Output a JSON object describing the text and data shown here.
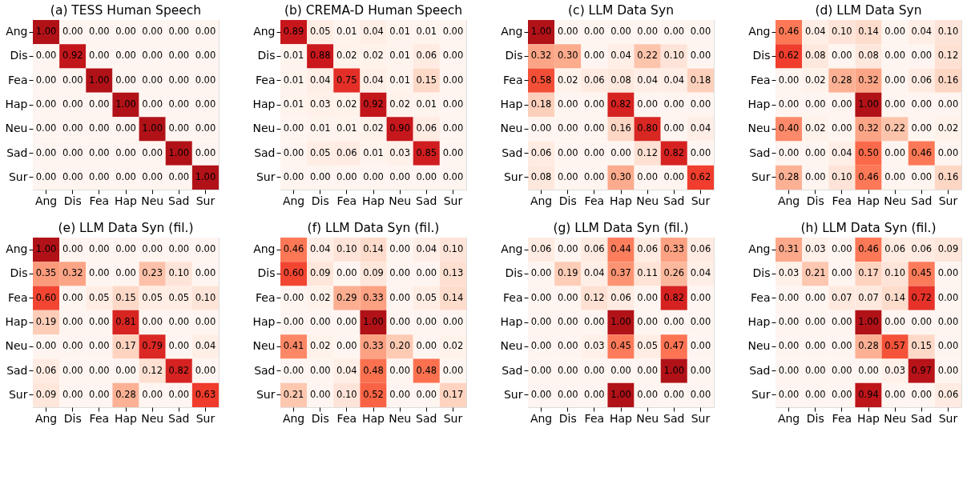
{
  "chart_data": [
    {
      "type": "heatmap",
      "title": "(a) TESS Human Speech",
      "categories": [
        "Ang",
        "Dis",
        "Fea",
        "Hap",
        "Neu",
        "Sad",
        "Sur"
      ],
      "y_categories": [
        "Ang",
        "Dis",
        "Fea",
        "Hap",
        "Neu",
        "Sad",
        "Sur"
      ],
      "cells": [
        [
          1.0,
          0,
          0,
          0,
          0,
          0,
          0
        ],
        [
          0,
          0.92,
          0,
          0,
          0,
          0,
          0
        ],
        [
          0,
          0,
          1.0,
          0,
          0,
          0,
          0
        ],
        [
          0,
          0,
          0,
          1.0,
          0,
          0,
          0
        ],
        [
          0,
          0,
          0,
          0,
          1.0,
          0,
          0
        ],
        [
          0,
          0,
          0,
          0,
          0,
          1.0,
          0
        ],
        [
          0,
          0,
          0,
          0,
          0,
          0,
          1.0
        ]
      ],
      "cell_labels": [
        [
          "1.00",
          "0.00",
          "0.00",
          "0.00",
          "0.00",
          "0.00",
          "0.00"
        ],
        [
          "0.00",
          "0.92",
          "0.00",
          "0.00",
          "0.00",
          "0.00",
          "0.00"
        ],
        [
          "0.00",
          "0.00",
          "1.00",
          "0.00",
          "0.00",
          "0.00",
          "0.00"
        ],
        [
          "0.00",
          "0.00",
          "0.00",
          "1.00",
          "0.00",
          "0.00",
          "0.00"
        ],
        [
          "0.00",
          "0.00",
          "0.00",
          "0.00",
          "1.00",
          "0.00",
          "0.00"
        ],
        [
          "0.00",
          "0.00",
          "0.00",
          "0.00",
          "0.00",
          "1.00",
          "0.00"
        ],
        [
          "0.00",
          "0.00",
          "0.00",
          "0.00",
          "0.00",
          "0.00",
          "1.00"
        ]
      ]
    },
    {
      "type": "heatmap",
      "title": "(b) CREMA-D Human Speech",
      "categories": [
        "Ang",
        "Dis",
        "Fea",
        "Hap",
        "Neu",
        "Sad",
        "Sur"
      ],
      "y_categories": [
        "Ang",
        "Dis",
        "Fea",
        "Hap",
        "Neu",
        "Sad",
        "Sur"
      ],
      "cells": [
        [
          0.89,
          0.05,
          0.01,
          0.04,
          0.01,
          0.01,
          0
        ],
        [
          0.01,
          0.88,
          0.02,
          0.02,
          0.01,
          0.06,
          0
        ],
        [
          0.01,
          0.04,
          0.75,
          0.04,
          0.01,
          0.15,
          0
        ],
        [
          0.01,
          0.03,
          0.02,
          0.92,
          0.02,
          0.01,
          0
        ],
        [
          0,
          0.01,
          0.01,
          0.02,
          0.9,
          0.06,
          0
        ],
        [
          0,
          0.05,
          0.06,
          0.01,
          0.03,
          0.85,
          0
        ],
        [
          0,
          0,
          0,
          0,
          0,
          0,
          0
        ]
      ],
      "cell_labels": [
        [
          "0.89",
          "0.05",
          "0.01",
          "0.04",
          "0.01",
          "0.01",
          "0.00"
        ],
        [
          "0.01",
          "0.88",
          "0.02",
          "0.02",
          "0.01",
          "0.06",
          "0.00"
        ],
        [
          "0.01",
          "0.04",
          "0.75",
          "0.04",
          "0.01",
          "0.15",
          "0.00"
        ],
        [
          "0.01",
          "0.03",
          "0.02",
          "0.92",
          "0.02",
          "0.01",
          "0.00"
        ],
        [
          "0.00",
          "0.01",
          "0.01",
          "0.02",
          "0.90",
          "0.06",
          "0.00"
        ],
        [
          "0.00",
          "0.05",
          "0.06",
          "0.01",
          "0.03",
          "0.85",
          "0.00"
        ],
        [
          "0.00",
          "0.00",
          "0.00",
          "0.00",
          "0.00",
          "0.00",
          "0.00"
        ]
      ]
    },
    {
      "type": "heatmap",
      "title": "(c) LLM Data Syn",
      "categories": [
        "Ang",
        "Dis",
        "Fea",
        "Hap",
        "Neu",
        "Sad",
        "Sur"
      ],
      "y_categories": [
        "Ang",
        "Dis",
        "Fea",
        "Hap",
        "Neu",
        "Sad",
        "Sur"
      ],
      "cells": [
        [
          1.0,
          0,
          0,
          0,
          0,
          0,
          0
        ],
        [
          0.32,
          0.3,
          0,
          0.04,
          0.22,
          0.1,
          0
        ],
        [
          0.58,
          0.02,
          0.06,
          0.08,
          0.04,
          0.04,
          0.18
        ],
        [
          0.18,
          0,
          0,
          0.82,
          0,
          0,
          0
        ],
        [
          0,
          0,
          0,
          0.16,
          0.8,
          0,
          0.04
        ],
        [
          0.06,
          0,
          0,
          0,
          0.12,
          0.82,
          0
        ],
        [
          0.08,
          0,
          0,
          0.3,
          0,
          0,
          0.62
        ]
      ],
      "cell_labels": [
        [
          "1.00",
          "0.00",
          "0.00",
          "0.00",
          "0.00",
          "0.00",
          "0.00"
        ],
        [
          "0.32",
          "0.30",
          "0.00",
          "0.04",
          "0.22",
          "0.10",
          "0.00"
        ],
        [
          "0.58",
          "0.02",
          "0.06",
          "0.08",
          "0.04",
          "0.04",
          "0.18"
        ],
        [
          "0.18",
          "0.00",
          "0.00",
          "0.82",
          "0.00",
          "0.00",
          "0.00"
        ],
        [
          "0.00",
          "0.00",
          "0.00",
          "0.16",
          "0.80",
          "0.00",
          "0.04"
        ],
        [
          "0.06",
          "0.00",
          "0.00",
          "0.00",
          "0.12",
          "0.82",
          "0.00"
        ],
        [
          "0.08",
          "0.00",
          "0.00",
          "0.30",
          "0.00",
          "0.00",
          "0.62"
        ]
      ]
    },
    {
      "type": "heatmap",
      "title": "(d) LLM Data Syn",
      "categories": [
        "Ang",
        "Dis",
        "Fea",
        "Hap",
        "Neu",
        "Sad",
        "Sur"
      ],
      "y_categories": [
        "Ang",
        "Dis",
        "Fea",
        "Hap",
        "Neu",
        "Sad",
        "Sur"
      ],
      "cells": [
        [
          0.46,
          0.04,
          0.1,
          0.14,
          0,
          0.04,
          0.1
        ],
        [
          0.62,
          0.08,
          0,
          0.08,
          0,
          0,
          0.12
        ],
        [
          0,
          0.02,
          0.28,
          0.32,
          0,
          0.06,
          0.16
        ],
        [
          0,
          0,
          0,
          1.0,
          0,
          0,
          0
        ],
        [
          0.4,
          0.02,
          0,
          0.32,
          0.22,
          0,
          0.02
        ],
        [
          0,
          0,
          0.04,
          0.5,
          0,
          0.46,
          0
        ],
        [
          0.28,
          0,
          0.1,
          0.46,
          0,
          0,
          0.16
        ]
      ],
      "cell_labels": [
        [
          "0.46",
          "0.04",
          "0.10",
          "0.14",
          "0.00",
          "0.04",
          "0.10"
        ],
        [
          "0.62",
          "0.08",
          "0.00",
          "0.08",
          "0.00",
          "0.00",
          "0.12"
        ],
        [
          "0.00",
          "0.02",
          "0.28",
          "0.32",
          "0.00",
          "0.06",
          "0.16"
        ],
        [
          "0.00",
          "0.00",
          "0.00",
          "1.00",
          "0.00",
          "0.00",
          "0.00"
        ],
        [
          "0.40",
          "0.02",
          "0.00",
          "0.32",
          "0.22",
          "0.00",
          "0.02"
        ],
        [
          "0.00",
          "0.00",
          "0.04",
          "0.50",
          "0.00",
          "0.46",
          "0.00"
        ],
        [
          "0.28",
          "0.00",
          "0.10",
          "0.46",
          "0.00",
          "0.00",
          "0.16"
        ]
      ]
    },
    {
      "type": "heatmap",
      "title": "(e) LLM Data Syn (fil.)",
      "categories": [
        "Ang",
        "Dis",
        "Fea",
        "Hap",
        "Neu",
        "Sad",
        "Sur"
      ],
      "y_categories": [
        "Ang",
        "Dis",
        "Fea",
        "Hap",
        "Neu",
        "Sad",
        "Sur"
      ],
      "cells": [
        [
          1.0,
          0,
          0,
          0,
          0,
          0,
          0
        ],
        [
          0.35,
          0.32,
          0,
          0,
          0.23,
          0.1,
          0
        ],
        [
          0.6,
          0,
          0.05,
          0.15,
          0.05,
          0.05,
          0.1
        ],
        [
          0.19,
          0,
          0,
          0.81,
          0,
          0,
          0
        ],
        [
          0,
          0,
          0,
          0.17,
          0.79,
          0,
          0.04
        ],
        [
          0.06,
          0,
          0,
          0,
          0.12,
          0.82,
          0
        ],
        [
          0.09,
          0,
          0,
          0.28,
          0,
          0,
          0.63
        ]
      ],
      "cell_labels": [
        [
          "1.00",
          "0.00",
          "0.00",
          "0.00",
          "0.00",
          "0.00",
          "0.00"
        ],
        [
          "0.35",
          "0.32",
          "0.00",
          "0.00",
          "0.23",
          "0.10",
          "0.00"
        ],
        [
          "0.60",
          "0.00",
          "0.05",
          "0.15",
          "0.05",
          "0.05",
          "0.10"
        ],
        [
          "0.19",
          "0.00",
          "0.00",
          "0.81",
          "0.00",
          "0.00",
          "0.00"
        ],
        [
          "0.00",
          "0.00",
          "0.00",
          "0.17",
          "0.79",
          "0.00",
          "0.04"
        ],
        [
          "0.06",
          "0.00",
          "0.00",
          "0.00",
          "0.12",
          "0.82",
          "0.00"
        ],
        [
          "0.09",
          "0.00",
          "0.00",
          "0.28",
          "0.00",
          "0.00",
          "0.63"
        ]
      ]
    },
    {
      "type": "heatmap",
      "title": "(f) LLM Data Syn (fil.)",
      "categories": [
        "Ang",
        "Dis",
        "Fea",
        "Hap",
        "Neu",
        "Sad",
        "Sur"
      ],
      "y_categories": [
        "Ang",
        "Dis",
        "Fea",
        "Hap",
        "Neu",
        "Sad",
        "Sur"
      ],
      "cells": [
        [
          0.46,
          0.04,
          0.1,
          0.14,
          0,
          0.04,
          0.1
        ],
        [
          0.6,
          0.09,
          0,
          0.09,
          0,
          0,
          0.13
        ],
        [
          0,
          0.02,
          0.29,
          0.33,
          0,
          0.05,
          0.14
        ],
        [
          0,
          0,
          0,
          1.0,
          0,
          0,
          0
        ],
        [
          0.41,
          0.02,
          0,
          0.33,
          0.2,
          0,
          0.02
        ],
        [
          0,
          0,
          0.04,
          0.48,
          0,
          0.48,
          0
        ],
        [
          0.21,
          0,
          0.1,
          0.52,
          0,
          0,
          0.17
        ]
      ],
      "cell_labels": [
        [
          "0.46",
          "0.04",
          "0.10",
          "0.14",
          "0.00",
          "0.04",
          "0.10"
        ],
        [
          "0.60",
          "0.09",
          "0.00",
          "0.09",
          "0.00",
          "0.00",
          "0.13"
        ],
        [
          "0.00",
          "0.02",
          "0.29",
          "0.33",
          "0.00",
          "0.05",
          "0.14"
        ],
        [
          "0.00",
          "0.00",
          "0.00",
          "1.00",
          "0.00",
          "0.00",
          "0.00"
        ],
        [
          "0.41",
          "0.02",
          "0.00",
          "0.33",
          "0.20",
          "0.00",
          "0.02"
        ],
        [
          "0.00",
          "0.00",
          "0.04",
          "0.48",
          "0.00",
          "0.48",
          "0.00"
        ],
        [
          "0.21",
          "0.00",
          "0.10",
          "0.52",
          "0.00",
          "0.00",
          "0.17"
        ]
      ]
    },
    {
      "type": "heatmap",
      "title": "(g) LLM Data Syn (fil.)",
      "categories": [
        "Ang",
        "Dis",
        "Fea",
        "Hap",
        "Neu",
        "Sad",
        "Sur"
      ],
      "y_categories": [
        "Ang",
        "Dis",
        "Fea",
        "Hap",
        "Neu",
        "Sad",
        "Sur"
      ],
      "cells": [
        [
          0.06,
          0,
          0.06,
          0.44,
          0.06,
          0.33,
          0.06
        ],
        [
          0,
          0.19,
          0.04,
          0.37,
          0.11,
          0.26,
          0.04
        ],
        [
          0,
          0,
          0.12,
          0.06,
          0,
          0.82,
          0
        ],
        [
          0,
          0,
          0,
          1.0,
          0,
          0,
          0
        ],
        [
          0,
          0,
          0.03,
          0.45,
          0.05,
          0.47,
          0
        ],
        [
          0,
          0,
          0,
          0,
          0,
          1.0,
          0
        ],
        [
          0,
          0,
          0,
          1.0,
          0,
          0,
          0
        ]
      ],
      "cell_labels": [
        [
          "0.06",
          "0.00",
          "0.06",
          "0.44",
          "0.06",
          "0.33",
          "0.06"
        ],
        [
          "0.00",
          "0.19",
          "0.04",
          "0.37",
          "0.11",
          "0.26",
          "0.04"
        ],
        [
          "0.00",
          "0.00",
          "0.12",
          "0.06",
          "0.00",
          "0.82",
          "0.00"
        ],
        [
          "0.00",
          "0.00",
          "0.00",
          "1.00",
          "0.00",
          "0.00",
          "0.00"
        ],
        [
          "0.00",
          "0.00",
          "0.03",
          "0.45",
          "0.05",
          "0.47",
          "0.00"
        ],
        [
          "0.00",
          "0.00",
          "0.00",
          "0.00",
          "0.00",
          "1.00",
          "0.00"
        ],
        [
          "0.00",
          "0.00",
          "0.00",
          "1.00",
          "0.00",
          "0.00",
          "0.00"
        ]
      ]
    },
    {
      "type": "heatmap",
      "title": "(h) LLM Data Syn (fil.)",
      "categories": [
        "Ang",
        "Dis",
        "Fea",
        "Hap",
        "Neu",
        "Sad",
        "Sur"
      ],
      "y_categories": [
        "Ang",
        "Dis",
        "Fea",
        "Hap",
        "Neu",
        "Sad",
        "Sur"
      ],
      "cells": [
        [
          0.31,
          0.03,
          0,
          0.46,
          0.06,
          0.06,
          0.09
        ],
        [
          0.03,
          0.21,
          0,
          0.17,
          0.1,
          0.45,
          0
        ],
        [
          0,
          0,
          0.07,
          0.07,
          0.14,
          0.72,
          0
        ],
        [
          0,
          0,
          0,
          1.0,
          0,
          0,
          0
        ],
        [
          0,
          0,
          0,
          0.28,
          0.57,
          0.15,
          0
        ],
        [
          0,
          0,
          0,
          0,
          0.03,
          0.97,
          0
        ],
        [
          0,
          0,
          0,
          0.94,
          0,
          0,
          0.06
        ]
      ],
      "cell_labels": [
        [
          "0.31",
          "0.03",
          "0.00",
          "0.46",
          "0.06",
          "0.06",
          "0.09"
        ],
        [
          "0.03",
          "0.21",
          "0.00",
          "0.17",
          "0.10",
          "0.45",
          "0.00"
        ],
        [
          "0.00",
          "0.00",
          "0.07",
          "0.07",
          "0.14",
          "0.72",
          "0.00"
        ],
        [
          "0.00",
          "0.00",
          "0.00",
          "1.00",
          "0.00",
          "0.00",
          "0.00"
        ],
        [
          "0.00",
          "0.00",
          "0.00",
          "0.28",
          "0.57",
          "0.15",
          "0.00"
        ],
        [
          "0.00",
          "0.00",
          "0.00",
          "0.00",
          "0.03",
          "0.97",
          "0.00"
        ],
        [
          "0.00",
          "0.00",
          "0.00",
          "0.94",
          "0.00",
          "0.00",
          "0.06"
        ]
      ]
    }
  ]
}
